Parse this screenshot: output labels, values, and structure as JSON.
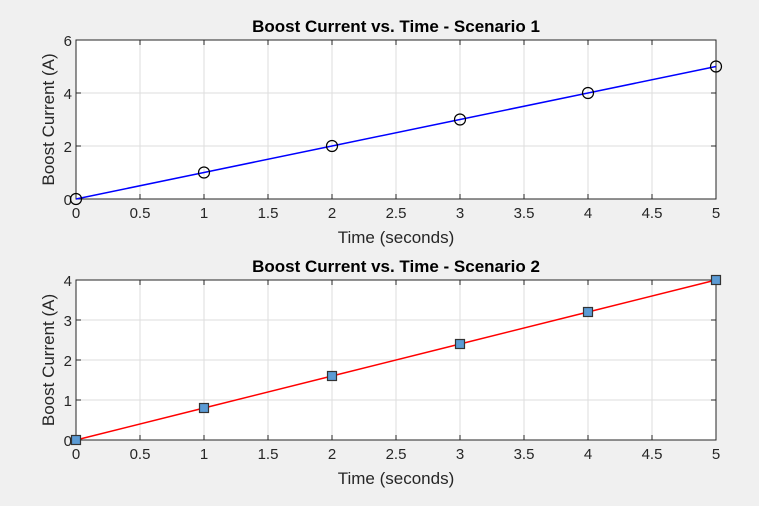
{
  "chart_data": [
    {
      "type": "line",
      "title": "Boost Current vs. Time - Scenario 1",
      "xlabel": "Time (seconds)",
      "ylabel": "Boost Current (A)",
      "xlim": [
        0,
        5
      ],
      "ylim": [
        0,
        6
      ],
      "xticks": [
        0,
        0.5,
        1,
        1.5,
        2,
        2.5,
        3,
        3.5,
        4,
        4.5,
        5
      ],
      "yticks": [
        0,
        2,
        4,
        6
      ],
      "grid": true,
      "series": [
        {
          "x": [
            0,
            1,
            2,
            3,
            4,
            5
          ],
          "y": [
            0,
            1,
            2,
            3,
            4,
            5
          ],
          "color": "#0000ff",
          "marker": "circle",
          "marker_face": "none",
          "marker_edge": "#000000"
        }
      ]
    },
    {
      "type": "line",
      "title": "Boost Current vs. Time - Scenario 2",
      "xlabel": "Time (seconds)",
      "ylabel": "Boost Current (A)",
      "xlim": [
        0,
        5
      ],
      "ylim": [
        0,
        4
      ],
      "xticks": [
        0,
        0.5,
        1,
        1.5,
        2,
        2.5,
        3,
        3.5,
        4,
        4.5,
        5
      ],
      "yticks": [
        0,
        1,
        2,
        3,
        4
      ],
      "grid": true,
      "series": [
        {
          "x": [
            0,
            1,
            2,
            3,
            4,
            5
          ],
          "y": [
            0,
            0.8,
            1.6,
            2.4,
            3.2,
            4.0
          ],
          "color": "#ff0000",
          "marker": "square",
          "marker_face": "#5b9bd5",
          "marker_edge": "#333333"
        }
      ]
    }
  ]
}
